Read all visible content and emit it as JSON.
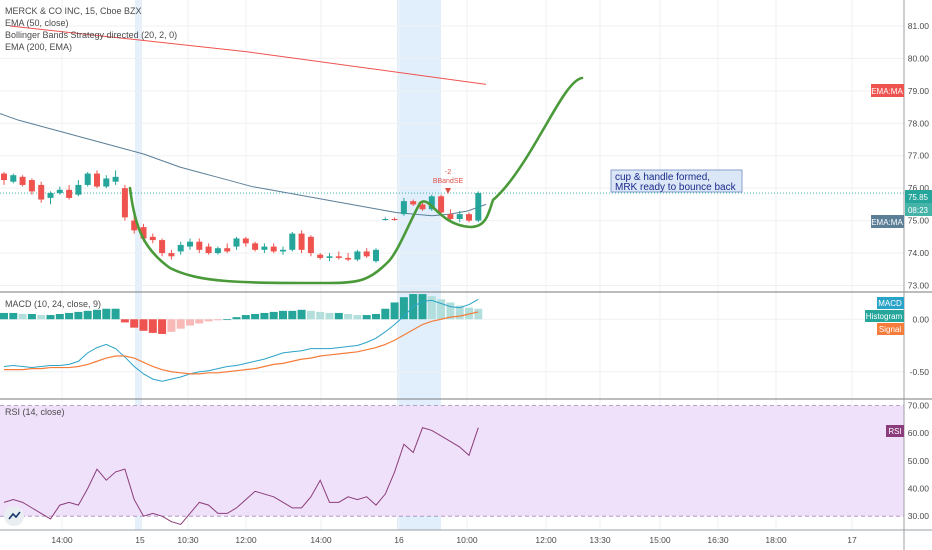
{
  "header": {
    "symbol_line": "MERCK & CO INC, 15, Cboe BZX",
    "indicators": [
      "EMA (50, close)",
      "Bollinger Bands Strategy directed (20, 2, 0)",
      "EMA (200, EMA)"
    ]
  },
  "colors": {
    "up": "#26a69a",
    "down": "#ef5350",
    "ema50": "#5b7f97",
    "ema200": "#ef5350",
    "cup": "#4a9a3a",
    "macd": "#2aa3c9",
    "signal": "#f57c3a",
    "rsi": "#8a3d7a",
    "rsi_band": "#f0e1fb",
    "highlight": "#d9ebfb"
  },
  "chart_data": [
    {
      "type": "candlestick",
      "panel": "price",
      "ylim": [
        72.8,
        81.8
      ],
      "y_ticks": [
        "81.00",
        "80.00",
        "79.00",
        "78.00",
        "77.00",
        "76.00",
        "75.00",
        "74.00",
        "73.00"
      ],
      "x_ticks": [
        "14:00",
        "15",
        "10:30",
        "12:00",
        "14:00",
        "16",
        "10:00",
        "12:00",
        "13:30",
        "15:00",
        "16:30",
        "18:00",
        "17"
      ],
      "candles": [
        {
          "o": 76.45,
          "h": 76.5,
          "l": 76.1,
          "c": 76.25
        },
        {
          "o": 76.2,
          "h": 76.45,
          "l": 76.15,
          "c": 76.4
        },
        {
          "o": 76.35,
          "h": 76.4,
          "l": 76.05,
          "c": 76.1
        },
        {
          "o": 76.25,
          "h": 76.3,
          "l": 75.8,
          "c": 75.9
        },
        {
          "o": 76.1,
          "h": 76.2,
          "l": 75.55,
          "c": 75.65
        },
        {
          "o": 75.7,
          "h": 75.9,
          "l": 75.5,
          "c": 75.85
        },
        {
          "o": 75.85,
          "h": 76.05,
          "l": 75.8,
          "c": 75.95
        },
        {
          "o": 75.95,
          "h": 76.1,
          "l": 75.65,
          "c": 75.7
        },
        {
          "o": 75.8,
          "h": 76.25,
          "l": 75.75,
          "c": 76.1
        },
        {
          "o": 76.1,
          "h": 76.5,
          "l": 76.05,
          "c": 76.45
        },
        {
          "o": 76.45,
          "h": 76.55,
          "l": 76.0,
          "c": 76.05
        },
        {
          "o": 76.05,
          "h": 76.4,
          "l": 76.0,
          "c": 76.3
        },
        {
          "o": 76.2,
          "h": 76.55,
          "l": 76.1,
          "c": 76.35
        },
        {
          "o": 76.0,
          "h": 76.1,
          "l": 75.0,
          "c": 75.1
        },
        {
          "o": 75.0,
          "h": 75.3,
          "l": 74.6,
          "c": 74.7
        },
        {
          "o": 74.8,
          "h": 74.9,
          "l": 74.35,
          "c": 74.45
        },
        {
          "o": 74.5,
          "h": 74.6,
          "l": 74.3,
          "c": 74.4
        },
        {
          "o": 74.4,
          "h": 74.45,
          "l": 73.9,
          "c": 74.0
        },
        {
          "o": 74.0,
          "h": 74.1,
          "l": 73.8,
          "c": 73.9
        },
        {
          "o": 74.05,
          "h": 74.35,
          "l": 73.95,
          "c": 74.25
        },
        {
          "o": 74.2,
          "h": 74.45,
          "l": 74.1,
          "c": 74.35
        },
        {
          "o": 74.35,
          "h": 74.45,
          "l": 74.0,
          "c": 74.1
        },
        {
          "o": 74.2,
          "h": 74.3,
          "l": 73.95,
          "c": 74.0
        },
        {
          "o": 74.0,
          "h": 74.2,
          "l": 73.95,
          "c": 74.15
        },
        {
          "o": 74.15,
          "h": 74.3,
          "l": 74.0,
          "c": 74.05
        },
        {
          "o": 74.2,
          "h": 74.5,
          "l": 74.1,
          "c": 74.45
        },
        {
          "o": 74.45,
          "h": 74.5,
          "l": 74.2,
          "c": 74.3
        },
        {
          "o": 74.3,
          "h": 74.35,
          "l": 74.05,
          "c": 74.1
        },
        {
          "o": 74.1,
          "h": 74.3,
          "l": 74.0,
          "c": 74.2
        },
        {
          "o": 74.2,
          "h": 74.3,
          "l": 74.0,
          "c": 74.05
        },
        {
          "o": 74.05,
          "h": 74.2,
          "l": 73.95,
          "c": 74.1
        },
        {
          "o": 74.1,
          "h": 74.65,
          "l": 74.05,
          "c": 74.6
        },
        {
          "o": 74.6,
          "h": 74.7,
          "l": 74.0,
          "c": 74.1
        },
        {
          "o": 74.5,
          "h": 74.55,
          "l": 73.9,
          "c": 74.0
        },
        {
          "o": 73.95,
          "h": 74.0,
          "l": 73.8,
          "c": 73.85
        },
        {
          "o": 73.85,
          "h": 74.0,
          "l": 73.75,
          "c": 73.9
        },
        {
          "o": 73.9,
          "h": 74.05,
          "l": 73.8,
          "c": 73.85
        },
        {
          "o": 73.85,
          "h": 74.0,
          "l": 73.75,
          "c": 73.8
        },
        {
          "o": 73.8,
          "h": 74.1,
          "l": 73.75,
          "c": 74.05
        },
        {
          "o": 74.05,
          "h": 74.15,
          "l": 73.85,
          "c": 73.9
        },
        {
          "o": 73.75,
          "h": 74.15,
          "l": 73.7,
          "c": 74.1
        },
        {
          "o": 75.05,
          "h": 75.1,
          "l": 75.0,
          "c": 75.05
        },
        {
          "o": 75.05,
          "h": 75.1,
          "l": 75.0,
          "c": 75.02
        },
        {
          "o": 75.2,
          "h": 75.7,
          "l": 75.15,
          "c": 75.6
        },
        {
          "o": 75.6,
          "h": 75.65,
          "l": 75.45,
          "c": 75.5
        },
        {
          "o": 75.5,
          "h": 75.55,
          "l": 75.3,
          "c": 75.35
        },
        {
          "o": 75.35,
          "h": 75.8,
          "l": 75.3,
          "c": 75.75
        },
        {
          "o": 75.75,
          "h": 75.8,
          "l": 75.2,
          "c": 75.25
        },
        {
          "o": 75.2,
          "h": 75.35,
          "l": 75.0,
          "c": 75.05
        },
        {
          "o": 75.05,
          "h": 75.3,
          "l": 74.95,
          "c": 75.2
        },
        {
          "o": 75.2,
          "h": 75.25,
          "l": 74.95,
          "c": 75.0
        },
        {
          "o": 75.0,
          "h": 75.9,
          "l": 74.95,
          "c": 75.85
        }
      ],
      "ema50": [
        78.3,
        78.1,
        77.95,
        77.8,
        77.65,
        77.5,
        77.35,
        77.2,
        77.05,
        76.85,
        76.65,
        76.5,
        76.35,
        76.2,
        76.05,
        75.95,
        75.85,
        75.75,
        75.65,
        75.55,
        75.45,
        75.35,
        75.25,
        75.2,
        75.15,
        75.2,
        75.3,
        75.5
      ],
      "ema200": [
        81.0,
        80.8,
        80.6,
        80.4,
        80.2,
        79.95,
        79.7,
        79.45,
        79.2
      ],
      "last_price": "75.85",
      "countdown": "08:23",
      "tags": [
        "EMA:MA",
        "EMA:MA"
      ],
      "signal_label": "BBandSE",
      "signal_count": "-2",
      "annotation": [
        "cup & handle formed,",
        "MRK ready to bounce back"
      ]
    },
    {
      "type": "bar",
      "panel": "macd",
      "title": "MACD (10, 24, close, 9)",
      "ylim": [
        -0.75,
        0.25
      ],
      "y_ticks": [
        "0.00",
        "-0.50"
      ],
      "histogram": [
        0.06,
        0.06,
        0.05,
        0.05,
        0.04,
        0.04,
        0.05,
        0.06,
        0.07,
        0.08,
        0.09,
        0.1,
        0.1,
        -0.03,
        -0.08,
        -0.11,
        -0.13,
        -0.14,
        -0.12,
        -0.09,
        -0.06,
        -0.04,
        -0.02,
        -0.01,
        0.0,
        0.02,
        0.04,
        0.05,
        0.06,
        0.07,
        0.08,
        0.08,
        0.09,
        0.08,
        0.07,
        0.06,
        0.06,
        0.05,
        0.04,
        0.04,
        0.05,
        0.1,
        0.16,
        0.21,
        0.24,
        0.24,
        0.22,
        0.19,
        0.16,
        0.13,
        0.11,
        0.1
      ],
      "macd": [
        -0.45,
        -0.44,
        -0.45,
        -0.46,
        -0.45,
        -0.44,
        -0.44,
        -0.43,
        -0.4,
        -0.32,
        -0.27,
        -0.24,
        -0.28,
        -0.36,
        -0.45,
        -0.52,
        -0.57,
        -0.59,
        -0.57,
        -0.55,
        -0.52,
        -0.5,
        -0.49,
        -0.47,
        -0.45,
        -0.44,
        -0.42,
        -0.4,
        -0.38,
        -0.35,
        -0.32,
        -0.31,
        -0.3,
        -0.28,
        -0.28,
        -0.28,
        -0.27,
        -0.26,
        -0.25,
        -0.22,
        -0.18,
        -0.12,
        -0.05,
        0.03,
        0.12,
        0.17,
        0.18,
        0.15,
        0.12,
        0.11,
        0.14,
        0.19
      ],
      "signal": [
        -0.48,
        -0.48,
        -0.48,
        -0.47,
        -0.47,
        -0.46,
        -0.46,
        -0.46,
        -0.45,
        -0.43,
        -0.4,
        -0.37,
        -0.35,
        -0.35,
        -0.37,
        -0.41,
        -0.45,
        -0.48,
        -0.5,
        -0.51,
        -0.52,
        -0.52,
        -0.51,
        -0.51,
        -0.5,
        -0.49,
        -0.48,
        -0.47,
        -0.45,
        -0.43,
        -0.42,
        -0.4,
        -0.38,
        -0.37,
        -0.35,
        -0.34,
        -0.33,
        -0.32,
        -0.31,
        -0.29,
        -0.27,
        -0.24,
        -0.2,
        -0.15,
        -0.1,
        -0.05,
        -0.02,
        0.0,
        0.02,
        0.03,
        0.05,
        0.07
      ],
      "tags": [
        "MACD",
        "Histogram",
        "Signal"
      ]
    },
    {
      "type": "line",
      "panel": "rsi",
      "title": "RSI (14, close)",
      "ylim": [
        25,
        72
      ],
      "band": [
        30,
        70
      ],
      "y_ticks": [
        "70.00",
        "60.00",
        "50.00",
        "40.00",
        "30.00"
      ],
      "values": [
        35,
        36,
        35,
        33,
        31,
        29,
        34,
        35,
        34,
        40,
        47,
        43,
        46,
        47,
        36,
        30,
        31,
        30,
        28,
        27,
        31,
        35,
        34,
        31,
        31,
        33,
        36,
        39,
        38,
        37,
        35,
        33,
        33,
        37,
        43,
        35,
        35,
        37,
        36,
        37,
        34,
        38,
        46,
        56,
        53,
        62,
        61,
        59,
        57,
        55,
        52,
        62
      ],
      "tag": "RSI"
    }
  ]
}
